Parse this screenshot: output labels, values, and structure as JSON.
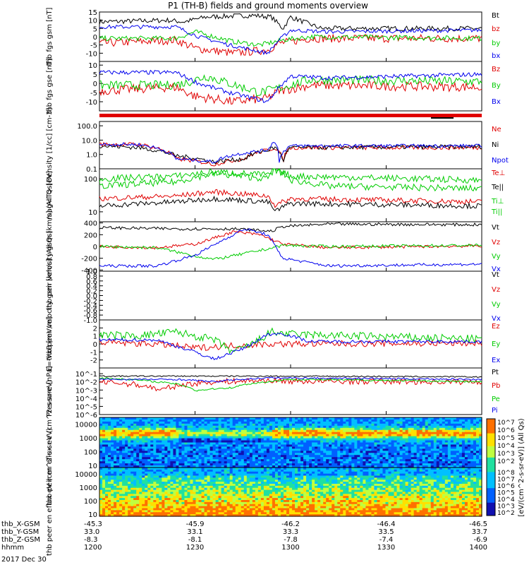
{
  "title": "P1 (TH-B) fields and ground moments overview",
  "footer": {
    "date": "2017 Dec 30"
  },
  "orbit": {
    "row_labels": [
      "thb_X-GSM",
      "thb_Y-GSM",
      "thb_Z-GSM",
      "hhmm"
    ],
    "columns": [
      [
        "-45.3",
        "33.0",
        "-8.3",
        "1200"
      ],
      [
        "-45.9",
        "33.1",
        "-8.1",
        "1230"
      ],
      [
        "-46.2",
        "33.3",
        "-7.8",
        "1300"
      ],
      [
        "-46.4",
        "33.5",
        "-7.4",
        "1330"
      ],
      [
        "-46.5",
        "33.7",
        "-6.9",
        "1400"
      ]
    ]
  },
  "colorbar": {
    "label": "[eV/(cm^2-s-sr-eV)] (All Qs)",
    "ticks_ion": [
      "10^7",
      "10^6",
      "10^5",
      "10^4",
      "10^3",
      "10^2"
    ],
    "ticks_elec": [
      "10^8",
      "10^7",
      "10^6",
      "10^5",
      "10^4",
      "10^3",
      "10^2"
    ]
  },
  "chart_data": [
    {
      "type": "line",
      "panel": "fgs_gsm",
      "ylabel": "thb fgs gsm [nT]",
      "ylim": [
        -15,
        15
      ],
      "yticks": [
        "15",
        "10",
        "5",
        "0",
        "-5",
        "-10"
      ],
      "series": [
        {
          "name": "Bt",
          "color": "#000000"
        },
        {
          "name": "bz",
          "color": "#e00000"
        },
        {
          "name": "by",
          "color": "#00cc00"
        },
        {
          "name": "bx",
          "color": "#0000ee"
        }
      ]
    },
    {
      "type": "line",
      "panel": "fgs_gse",
      "ylabel": "thb fgs gse [nT]",
      "ylim": [
        -15,
        12
      ],
      "yticks": [
        "10",
        "5",
        "0",
        "-5",
        "-10"
      ],
      "series": [
        {
          "name": "Bz",
          "color": "#e00000"
        },
        {
          "name": "By",
          "color": "#00cc00"
        },
        {
          "name": "Bx",
          "color": "#0000ee"
        }
      ]
    },
    {
      "type": "line",
      "panel": "density",
      "ylabel": "Density [1/cc] [cm-3]",
      "yscale": "log",
      "ylim": [
        0.1,
        200
      ],
      "yticks": [
        "100.0",
        "10.0",
        "1.0",
        "0.1"
      ],
      "series": [
        {
          "name": "Ne",
          "color": "#e00000"
        },
        {
          "name": "Ni",
          "color": "#000000"
        },
        {
          "name": "Npot",
          "color": "#0000ee"
        }
      ]
    },
    {
      "type": "line",
      "panel": "temperature",
      "ylabel": "mag<T> [eV]",
      "yscale": "log",
      "ylim": [
        5,
        200
      ],
      "yticks": [
        "100",
        "10"
      ],
      "series": [
        {
          "name": "Te⊥",
          "color": "#e00000"
        },
        {
          "name": "Te||",
          "color": "#000000"
        },
        {
          "name": "Ti⊥",
          "color": "#00cc00"
        },
        {
          "name": "Ti||",
          "color": "#00cc00"
        }
      ]
    },
    {
      "type": "line",
      "panel": "peir_velocity",
      "ylabel": "thb peir velocity gsm [km/s] (All Qs)",
      "ylim": [
        -420,
        420
      ],
      "yticks": [
        "400",
        "200",
        "0",
        "-200",
        "-400"
      ],
      "series": [
        {
          "name": "Vt",
          "color": "#000000"
        },
        {
          "name": "Vz",
          "color": "#e00000"
        },
        {
          "name": "Vy",
          "color": "#00cc00"
        },
        {
          "name": "Vx",
          "color": "#0000ee"
        }
      ]
    },
    {
      "type": "line",
      "panel": "peer_velocity",
      "ylabel": "thb peer velocity gsm [km/s] (All Qs)",
      "ylim": [
        -1,
        1
      ],
      "yticks": [
        "1.0",
        "0.8",
        "0.6",
        "0.4",
        "0.2",
        "0.0",
        "-0.2",
        "-0.4",
        "-0.6",
        "-0.8",
        "-1.0"
      ],
      "series": [
        {
          "name": "Vt",
          "color": "#000000"
        },
        {
          "name": "Vz",
          "color": "#e00000"
        },
        {
          "name": "Vy",
          "color": "#00cc00"
        },
        {
          "name": "Vx",
          "color": "#0000ee"
        }
      ]
    },
    {
      "type": "line",
      "panel": "efield",
      "ylabel": "E=-VxB [mV/m]",
      "ylim": [
        -3,
        3
      ],
      "yticks": [
        "2",
        "1",
        "0",
        "-1",
        "-2"
      ],
      "series": [
        {
          "name": "Ez",
          "color": "#e00000"
        },
        {
          "name": "Ey",
          "color": "#00cc00"
        },
        {
          "name": "Ex",
          "color": "#0000ee"
        }
      ]
    },
    {
      "type": "line",
      "panel": "pressure",
      "ylabel": "Pressure [nPa]",
      "yscale": "log",
      "ylim": [
        1e-06,
        0.5
      ],
      "yticks": [
        "10^-1",
        "10^-2",
        "10^-3",
        "10^-4",
        "10^-5",
        "10^-6"
      ],
      "series": [
        {
          "name": "Pt",
          "color": "#000000"
        },
        {
          "name": "Pb",
          "color": "#e00000"
        },
        {
          "name": "Pe",
          "color": "#00cc00"
        },
        {
          "name": "Pi",
          "color": "#0000ee"
        }
      ]
    },
    {
      "type": "heatmap",
      "panel": "peir_spectrogram",
      "ylabel": "thb peir en eflux eV (cm^2-s-sr-eV)",
      "yscale": "log",
      "ylim": [
        7,
        30000
      ],
      "yticks": [
        "10000",
        "1000",
        "100",
        "10"
      ]
    },
    {
      "type": "heatmap",
      "panel": "peer_spectrogram",
      "ylabel": "thb peer en eflux eV (cm^2-s-sr-eV)",
      "yscale": "log",
      "ylim": [
        7,
        30000
      ],
      "yticks": [
        "10000",
        "1000",
        "100",
        "10"
      ]
    }
  ]
}
